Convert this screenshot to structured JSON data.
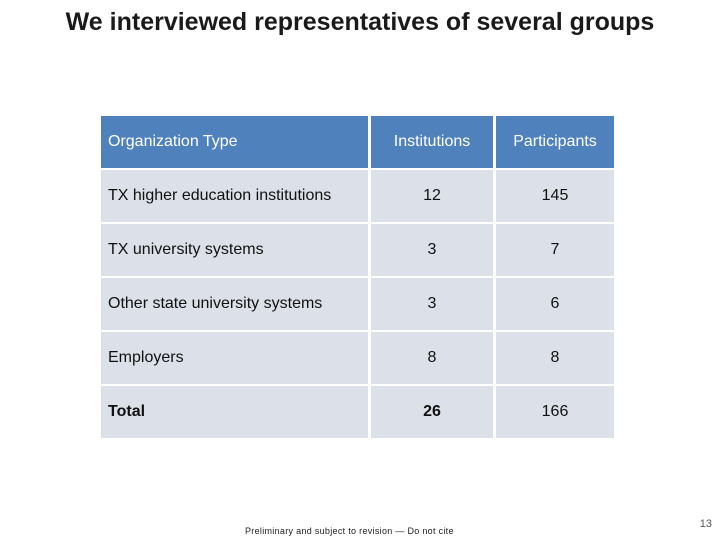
{
  "slide": {
    "title": "We interviewed representatives of several groups",
    "footer": "Preliminary and subject to revision — Do not cite",
    "page_number": "13"
  },
  "table": {
    "headers": [
      "Organization Type",
      "Institutions",
      "Participants"
    ],
    "rows": [
      {
        "type": "TX higher education institutions",
        "institutions": "12",
        "participants": "145"
      },
      {
        "type": "TX university systems",
        "institutions": "3",
        "participants": "7"
      },
      {
        "type": "Other state university systems",
        "institutions": "3",
        "participants": "6"
      },
      {
        "type": "Employers",
        "institutions": "8",
        "participants": "8"
      },
      {
        "type": "Total",
        "institutions": "26",
        "participants": "166"
      }
    ]
  },
  "colors": {
    "header_bg": "#4f81bd",
    "row_bg": "#dbe0e9"
  }
}
